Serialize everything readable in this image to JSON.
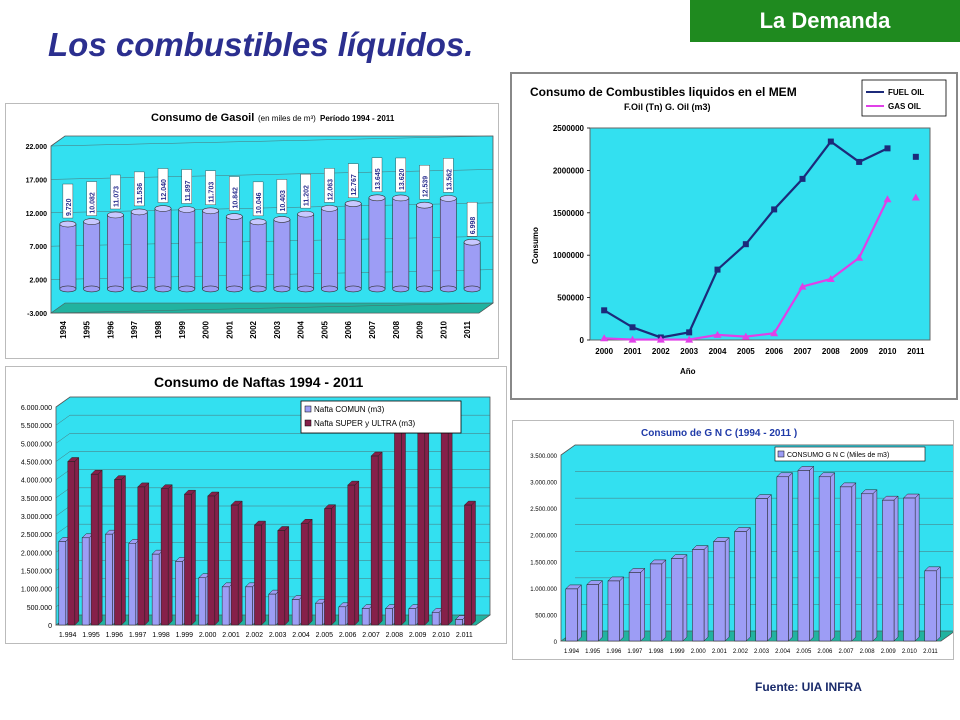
{
  "header": {
    "section_badge": "La Demanda",
    "page_title": "Los combustibles líquidos.",
    "source_note": "Fuente: UIA  INFRA"
  },
  "colors": {
    "badge_bg": "#1f8a1f",
    "title_text": "#2b2f8f",
    "plot_bg": "#33e0f0",
    "bar_blue": "#9d9df5",
    "bar_maroon": "#86204a",
    "fuel_oil_line": "#1c2a7a",
    "gas_oil_line": "#e040e8"
  },
  "chart_data": [
    {
      "type": "bar",
      "id": "gasoil",
      "title": "Consumo de Gasoil",
      "title_units": "(en miles de m³)",
      "title_period": "Período 1994  - 2011",
      "categories": [
        "1994",
        "1995",
        "1996",
        "1997",
        "1998",
        "1999",
        "2000",
        "2001",
        "2002",
        "2003",
        "2004",
        "2005",
        "2006",
        "2007",
        "2008",
        "2009",
        "2010",
        "2011"
      ],
      "values": [
        9720,
        10082,
        11073,
        11536,
        12040,
        11897,
        11703,
        10842,
        10046,
        10403,
        11202,
        12063,
        12767,
        13645,
        13620,
        12539,
        13562,
        6998
      ],
      "value_labels": [
        "9.720",
        "10.082",
        "11.073",
        "11.536",
        "12.040",
        "11.897",
        "11.703",
        "10.842",
        "10.046",
        "10.403",
        "11.202",
        "12.063",
        "12.767",
        "13.645",
        "13.620",
        "12.539",
        "13.562",
        "6.998"
      ],
      "yticks": [
        "-3.000",
        "2.000",
        "7.000",
        "12.000",
        "17.000",
        "22.000"
      ],
      "ylim": [
        -3000,
        22000
      ]
    },
    {
      "type": "line",
      "id": "mem",
      "title": "Consumo de Combustibles liquidos en el MEM",
      "subtitle": "F.Oil (Tn)  G. Oil (m3)",
      "xlabel": "Año",
      "ylabel": "Consumo",
      "categories": [
        "2000",
        "2001",
        "2002",
        "2003",
        "2004",
        "2005",
        "2006",
        "2007",
        "2008",
        "2009",
        "2010",
        "2011"
      ],
      "yticks": [
        "0",
        "500000",
        "1000000",
        "1500000",
        "2000000",
        "2500000"
      ],
      "ylim": [
        0,
        2500000
      ],
      "legend_position": "top-right",
      "series": [
        {
          "name": "FUEL OIL",
          "values": [
            350000,
            150000,
            30000,
            90000,
            830000,
            1130000,
            1540000,
            1900000,
            2340000,
            2100000,
            2260000,
            2160000
          ],
          "connected_upto": 10
        },
        {
          "name": "GAS OIL",
          "values": [
            20000,
            5000,
            5000,
            5000,
            60000,
            40000,
            80000,
            630000,
            720000,
            970000,
            1660000,
            1680000
          ],
          "connected_upto": 10
        }
      ]
    },
    {
      "type": "bar",
      "id": "naftas",
      "title": "Consumo de Naftas  1994 -  2011",
      "categories": [
        "1.994",
        "1.995",
        "1.996",
        "1.997",
        "1.998",
        "1.999",
        "2.000",
        "2.001",
        "2.002",
        "2.003",
        "2.004",
        "2.005",
        "2.006",
        "2.007",
        "2.008",
        "2.009",
        "2.010",
        "2.011"
      ],
      "yticks": [
        "0",
        "500.000",
        "1.000.000",
        "1.500.000",
        "2.000.000",
        "2.500.000",
        "3.000.000",
        "3.500.000",
        "4.000.000",
        "4.500.000",
        "5.000.000",
        "5.500.000",
        "6.000.000"
      ],
      "ylim": [
        0,
        6000000
      ],
      "legend_position": "top-right",
      "series": [
        {
          "name": "Nafta COMUN        (m3)",
          "values": [
            2300000,
            2400000,
            2500000,
            2250000,
            1950000,
            1750000,
            1300000,
            1050000,
            1050000,
            850000,
            700000,
            600000,
            500000,
            450000,
            450000,
            450000,
            350000,
            150000
          ]
        },
        {
          "name": "Nafta SUPER y ULTRA        (m3)",
          "values": [
            4500000,
            4150000,
            4000000,
            3800000,
            3750000,
            3600000,
            3550000,
            3300000,
            2750000,
            2600000,
            2800000,
            3200000,
            3850000,
            4650000,
            5300000,
            5600000,
            6000000,
            3300000
          ]
        }
      ]
    },
    {
      "type": "bar",
      "id": "gnc",
      "title": "Consumo de G N C   (1994 - 2011 )",
      "categories": [
        "1.994",
        "1.995",
        "1.996",
        "1.997",
        "1.998",
        "1.999",
        "2.000",
        "2.001",
        "2.002",
        "2.003",
        "2.004",
        "2.005",
        "2.006",
        "2.007",
        "2.008",
        "2.009",
        "2.010",
        "2.011"
      ],
      "yticks": [
        "0",
        "500.000",
        "1.000.000",
        "1.500.000",
        "2.000.000",
        "2.500.000",
        "3.000.000",
        "3.500.000"
      ],
      "ylim": [
        0,
        3500000
      ],
      "legend_position": "top-right",
      "series": [
        {
          "name": "CONSUMO  G N C  (Miles de m3)",
          "values": [
            980000,
            1060000,
            1130000,
            1290000,
            1450000,
            1550000,
            1720000,
            1870000,
            2060000,
            2680000,
            3090000,
            3210000,
            3090000,
            2900000,
            2770000,
            2650000,
            2690000,
            1320000
          ]
        }
      ]
    }
  ]
}
